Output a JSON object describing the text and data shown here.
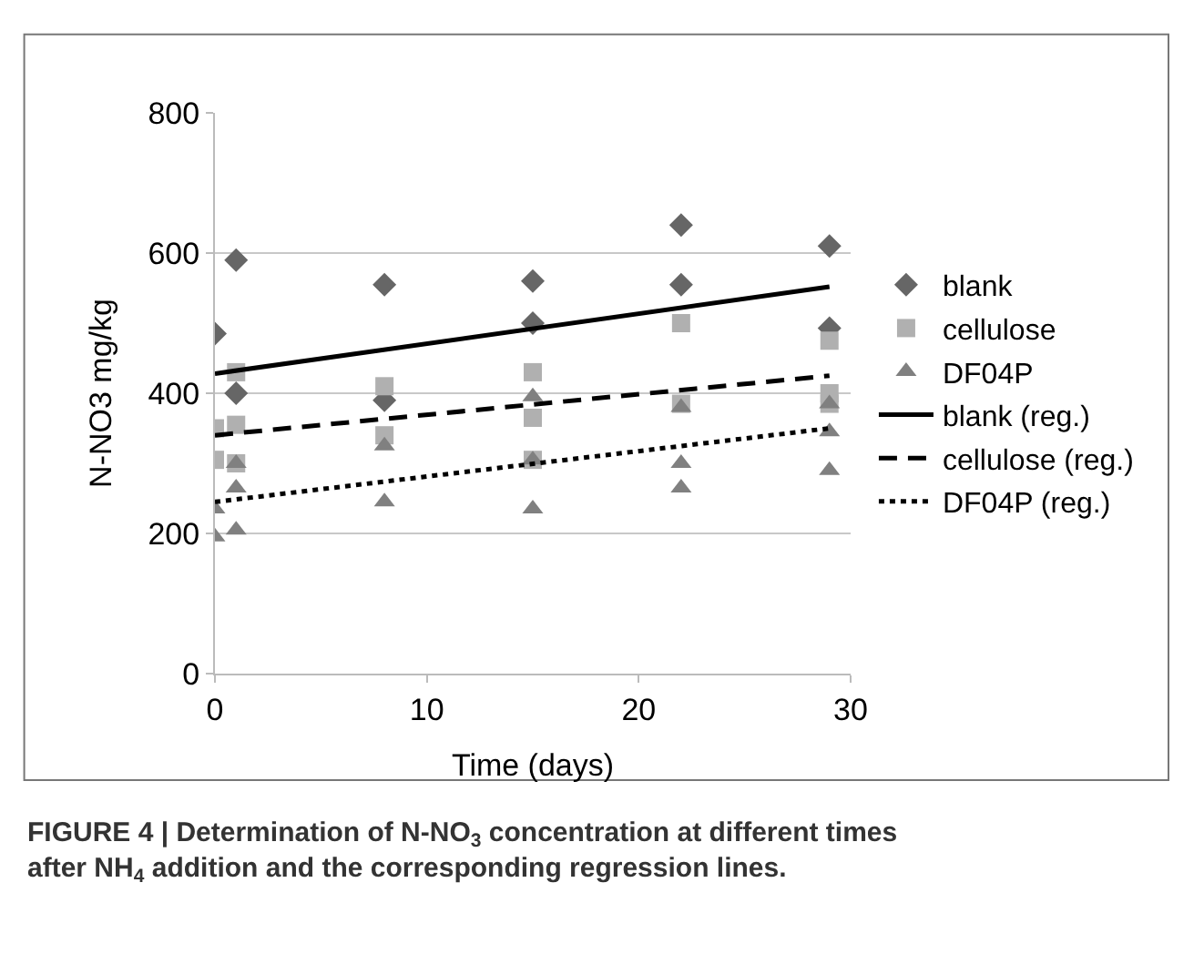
{
  "chart_data": {
    "type": "scatter",
    "xlabel": "Time (days)",
    "ylabel": "N-NO3 mg/kg",
    "xlim": [
      0,
      30
    ],
    "xticks": [
      0,
      10,
      20,
      30
    ],
    "ylim": [
      0,
      800
    ],
    "yticks": [
      0,
      200,
      400,
      600,
      800
    ],
    "grid": "y",
    "legend": "right",
    "series": [
      {
        "name": "blank",
        "marker": "diamond",
        "color": "#666666",
        "x": [
          0,
          1,
          1,
          8,
          8,
          15,
          15,
          22,
          22,
          29,
          29
        ],
        "values": [
          485,
          590,
          400,
          555,
          390,
          560,
          500,
          640,
          555,
          610,
          493
        ]
      },
      {
        "name": "cellulose",
        "marker": "square",
        "color": "#b0b0b0",
        "x": [
          0,
          0,
          1,
          1,
          1,
          8,
          8,
          15,
          15,
          15,
          22,
          22,
          29,
          29,
          29
        ],
        "values": [
          350,
          305,
          430,
          355,
          300,
          410,
          340,
          430,
          365,
          305,
          500,
          385,
          475,
          400,
          385
        ]
      },
      {
        "name": "DF04P",
        "marker": "triangle",
        "color": "#808080",
        "x": [
          0,
          0,
          1,
          1,
          1,
          8,
          8,
          15,
          15,
          15,
          22,
          22,
          22,
          29,
          29,
          29
        ],
        "values": [
          235,
          195,
          300,
          265,
          205,
          325,
          245,
          395,
          305,
          235,
          380,
          300,
          265,
          385,
          345,
          290
        ]
      },
      {
        "name": "blank (reg.)",
        "type": "line",
        "line_style": "solid",
        "color": "#000000",
        "x": [
          0,
          29
        ],
        "values": [
          428,
          552
        ]
      },
      {
        "name": "cellulose (reg.)",
        "type": "line",
        "line_style": "dashed",
        "color": "#000000",
        "x": [
          0,
          29
        ],
        "values": [
          340,
          425
        ]
      },
      {
        "name": "DF04P (reg.)",
        "type": "line",
        "line_style": "dotted",
        "color": "#000000",
        "x": [
          0,
          29
        ],
        "values": [
          245,
          350
        ]
      }
    ],
    "annotations": [
      "FIGURE 4 | Determination of N-NO$_{3}$ concentration at different times after NH$_{4}$ addition and the corresponding regression lines."
    ]
  }
}
